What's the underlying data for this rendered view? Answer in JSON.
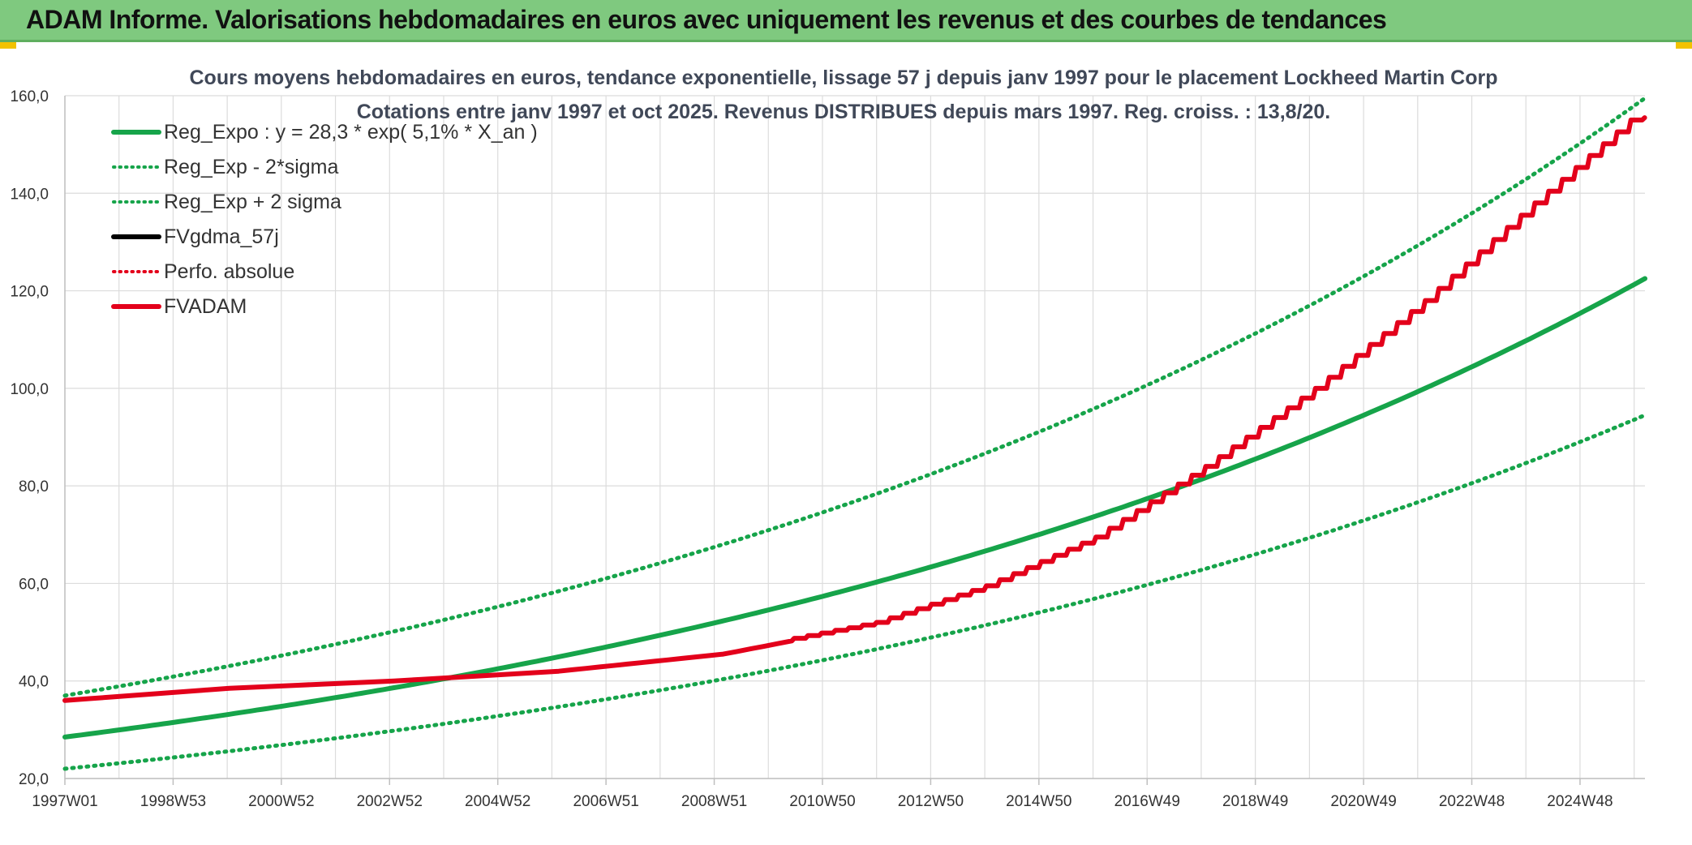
{
  "banner": {
    "title": "ADAM Informe. Valorisations hebdomadaires en euros avec uniquement les revenus et des courbes de tendances"
  },
  "colors": {
    "banner": "#7fc97f",
    "green": "#16a44a",
    "red": "#e3001b",
    "black": "#000000",
    "grid": "#dcdcdc"
  },
  "chart_data": {
    "type": "line",
    "title": "Cours moyens hebdomadaires en euros, tendance exponentielle, lissage 57 j depuis janv 1997 pour le placement Lockheed Martin Corp",
    "subtitle": "Cotations entre janv 1997 et oct 2025. Revenus DISTRIBUES depuis mars 1997. Reg. croiss. : 13,8/20.",
    "x_start_year": 1997.0,
    "x_end_year": 2025.8,
    "x_tick_labels": [
      "1997W01",
      "1998W53",
      "2000W52",
      "2002W52",
      "2004W52",
      "2006W51",
      "2008W51",
      "2010W50",
      "2012W50",
      "2014W50",
      "2016W49",
      "2018W49",
      "2020W49",
      "2022W48",
      "2024W48"
    ],
    "ylim": [
      20,
      160
    ],
    "y_ticks": [
      20,
      40,
      60,
      80,
      100,
      120,
      140,
      160
    ],
    "y_tick_labels": [
      "20,0",
      "40,0",
      "60,0",
      "80,0",
      "100,0",
      "120,0",
      "140,0",
      "160,0"
    ],
    "legend": [
      {
        "name": "Reg_Expo : y = 28,3 * exp( 5,1% *  X_an )",
        "color": "#16a44a",
        "style": "solid"
      },
      {
        "name": "Reg_Exp - 2*sigma",
        "color": "#16a44a",
        "style": "dotted"
      },
      {
        "name": "Reg_Exp + 2 sigma",
        "color": "#16a44a",
        "style": "dotted"
      },
      {
        "name": "FVgdma_57j",
        "color": "#000000",
        "style": "solid"
      },
      {
        "name": "Perfo. absolue",
        "color": "#e3001b",
        "style": "dotted"
      },
      {
        "name": "FVADAM",
        "color": "#e3001b",
        "style": "solid"
      }
    ],
    "series": [
      {
        "name": "Reg_Expo",
        "x": [
          1997.0,
          2001.0,
          2005.0,
          2009.0,
          2013.0,
          2017.0,
          2021.0,
          2025.8
        ],
        "values": [
          28.5,
          35.0,
          43.0,
          52.5,
          64.0,
          78.5,
          96.5,
          122.5
        ]
      },
      {
        "name": "Reg_Exp - 2*sigma",
        "x": [
          1997.0,
          2001.0,
          2005.0,
          2009.0,
          2013.0,
          2017.0,
          2021.0,
          2025.8
        ],
        "values": [
          22.0,
          27.0,
          33.5,
          41.0,
          50.0,
          61.5,
          75.0,
          94.5
        ]
      },
      {
        "name": "Reg_Exp + 2 sigma",
        "x": [
          1997.0,
          2001.0,
          2005.0,
          2009.0,
          2013.0,
          2017.0,
          2021.0,
          2025.8
        ],
        "values": [
          37.0,
          45.5,
          56.0,
          68.5,
          83.5,
          102.0,
          125.0,
          159.5
        ]
      },
      {
        "name": "FVADAM",
        "x": [
          1997.0,
          2000.0,
          2003.0,
          2006.0,
          2009.0,
          2012.0,
          2014.0,
          2016.0,
          2018.0,
          2020.0,
          2022.0,
          2024.0,
          2025.8
        ],
        "values": [
          36.0,
          38.5,
          40.0,
          42.0,
          45.5,
          52.0,
          59.5,
          69.5,
          84.0,
          100.0,
          118.0,
          138.0,
          155.5
        ]
      }
    ]
  }
}
